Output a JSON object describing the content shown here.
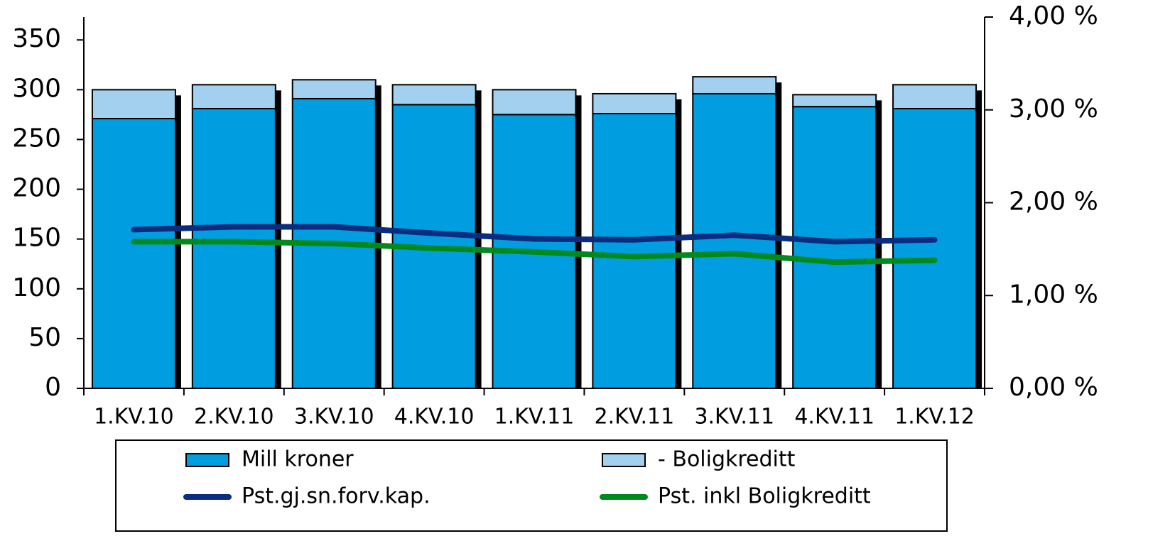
{
  "chart_data": {
    "type": "bar",
    "stacked": true,
    "categories": [
      "1.KV.10",
      "2.KV.10",
      "3.KV.10",
      "4.KV.10",
      "1.KV.11",
      "2.KV.11",
      "3.KV.11",
      "4.KV.11",
      "1.KV.12"
    ],
    "series": [
      {
        "name": "Mill kroner",
        "type": "bar",
        "color": "#009ee0",
        "values": [
          271,
          281,
          291,
          285,
          275,
          276,
          296,
          283,
          281
        ]
      },
      {
        "name": "- Boligkreditt",
        "type": "bar",
        "color": "#a3d0ee",
        "values": [
          29,
          24,
          19,
          20,
          25,
          20,
          17,
          12,
          24
        ]
      },
      {
        "name": "Pst.gj.sn.forv.kap.",
        "type": "line",
        "axis": "y2",
        "color": "#0a2d80",
        "values": [
          1.71,
          1.74,
          1.74,
          1.67,
          1.61,
          1.6,
          1.65,
          1.58,
          1.6
        ]
      },
      {
        "name": "Pst. inkl Boligkreditt",
        "type": "line",
        "axis": "y2",
        "color": "#008a1e",
        "values": [
          1.58,
          1.58,
          1.56,
          1.51,
          1.47,
          1.42,
          1.45,
          1.36,
          1.38
        ]
      }
    ],
    "ylim": [
      0,
      373
    ],
    "yticks": [
      0,
      50,
      100,
      150,
      200,
      250,
      300,
      350
    ],
    "y2lim": [
      0,
      4
    ],
    "y2ticks": [
      {
        "value": 0,
        "label": "0,00 %"
      },
      {
        "value": 1,
        "label": "1,00 %"
      },
      {
        "value": 2,
        "label": "2,00 %"
      },
      {
        "value": 3,
        "label": "3,00 %"
      },
      {
        "value": 4,
        "label": "4,00 %"
      }
    ],
    "legend": "bottom"
  }
}
